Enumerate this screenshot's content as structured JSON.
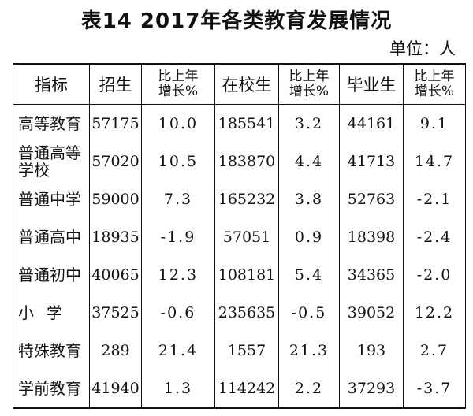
{
  "title": "表14  2017年各类教育发展情况",
  "unit": "单位：人",
  "columns": {
    "indicator": "指标",
    "enrollment": "招生",
    "enrollment_growth": [
      "比上年",
      "增长%"
    ],
    "in_school": "在校生",
    "in_school_growth": [
      "比上年",
      "增长%"
    ],
    "graduates": "毕业生",
    "graduates_growth": [
      "比上年",
      "增长%"
    ]
  },
  "rows": [
    {
      "name": "高等教育",
      "enroll": "57175",
      "enroll_g": "10.0",
      "school": "185541",
      "school_g": "3.2",
      "grad": "44161",
      "grad_g": "9.1"
    },
    {
      "name": "普通高等学校",
      "enroll": "57020",
      "enroll_g": "10.5",
      "school": "183870",
      "school_g": "4.4",
      "grad": "41713",
      "grad_g": "14.7"
    },
    {
      "name": "普通中学",
      "enroll": "59000",
      "enroll_g": "7.3",
      "school": "165232",
      "school_g": "3.8",
      "grad": "52763",
      "grad_g": "-2.1"
    },
    {
      "name": "普通高中",
      "enroll": "18935",
      "enroll_g": "-1.9",
      "school": "57051",
      "school_g": "0.9",
      "grad": "18398",
      "grad_g": "-2.4"
    },
    {
      "name": "普通初中",
      "enroll": "40065",
      "enroll_g": "12.3",
      "school": "108181",
      "school_g": "5.4",
      "grad": "34365",
      "grad_g": "-2.0"
    },
    {
      "name": "小学",
      "enroll": "37525",
      "enroll_g": "-0.6",
      "school": "235635",
      "school_g": "-0.5",
      "grad": "39052",
      "grad_g": "12.2"
    },
    {
      "name": "特殊教育",
      "enroll": "289",
      "enroll_g": "21.4",
      "school": "1557",
      "school_g": "21.3",
      "grad": "193",
      "grad_g": "2.7"
    },
    {
      "name": "学前教育",
      "enroll": "41940",
      "enroll_g": "1.3",
      "school": "114242",
      "school_g": "2.2",
      "grad": "37293",
      "grad_g": "-3.7"
    }
  ]
}
